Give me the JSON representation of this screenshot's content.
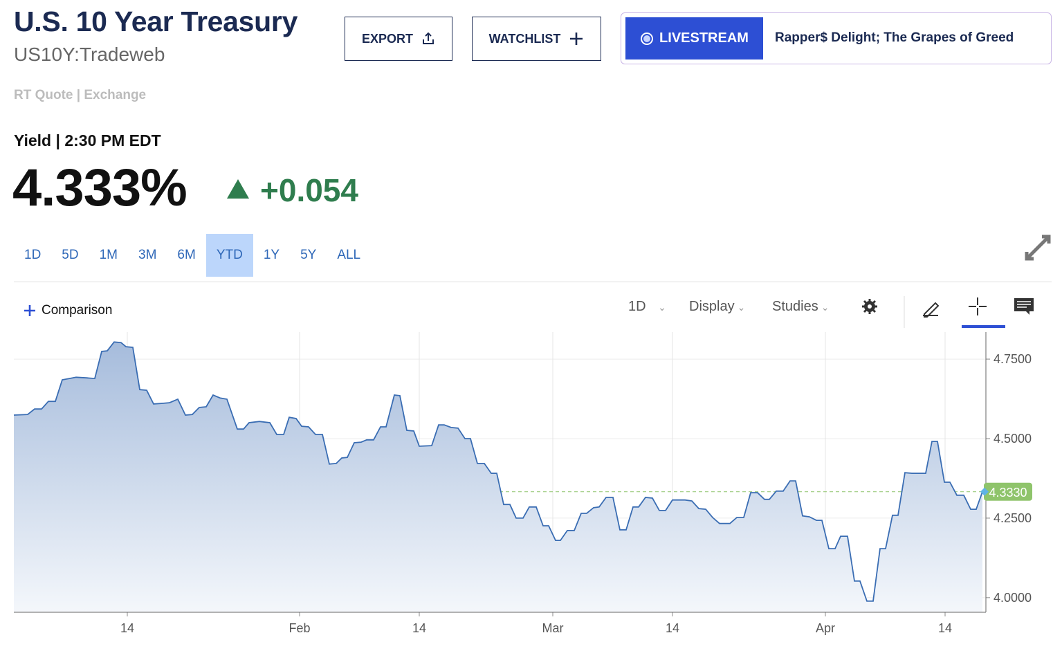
{
  "header": {
    "title": "U.S. 10 Year Treasury",
    "symbol": "US10Y:Tradeweb",
    "quote_source": "RT Quote | Exchange",
    "export": "EXPORT",
    "watchlist": "WATCHLIST",
    "livestream": "LIVESTREAM",
    "headline": "Rapper$ Delight; The Grapes of Greed"
  },
  "quote": {
    "label": "Yield | 2:30 PM EDT",
    "price": "4.333%",
    "change": "+0.054"
  },
  "ranges": [
    {
      "label": "1D"
    },
    {
      "label": "5D"
    },
    {
      "label": "1M"
    },
    {
      "label": "3M"
    },
    {
      "label": "6M"
    },
    {
      "label": "YTD",
      "selected": true
    },
    {
      "label": "1Y"
    },
    {
      "label": "5Y"
    },
    {
      "label": "ALL"
    }
  ],
  "toolbar": {
    "comparison": "Comparison",
    "interval": "1D",
    "display": "Display",
    "studies": "Studies"
  },
  "chart_data": {
    "type": "line",
    "color": "#3a6db3",
    "grid": true,
    "x": [
      0.0,
      2.0,
      3.0,
      4.0,
      5.0,
      6.0,
      7.0,
      8.5,
      9.0,
      10.5,
      11.7,
      12.7,
      13.5,
      14.5,
      15.5,
      16.2,
      17.2,
      18.2,
      19.2,
      20.2,
      21.5,
      22.5,
      23.7,
      24.8,
      25.8,
      26.8,
      27.8,
      28.8,
      29.8,
      30.8,
      32.3,
      33.2,
      34.0,
      35.5,
      37.0,
      38.0,
      39.0,
      39.8,
      40.8,
      41.6,
      42.6,
      43.6,
      44.6,
      45.6,
      46.6,
      47.4,
      48.2,
      49.2,
      50.2,
      51.0,
      52.0,
      53.0,
      53.8,
      55.0,
      55.8,
      56.8,
      57.8,
      58.6,
      60.4,
      61.4,
      62.2,
      63.2,
      64.2,
      65.2,
      66.0,
      67.0,
      68.0,
      69.0,
      69.8,
      70.8,
      71.7,
      72.6,
      73.6,
      74.5,
      75.5,
      76.5,
      77.3,
      78.3,
      79.0,
      80.0,
      81.0,
      82.0,
      82.8,
      83.8,
      84.6,
      85.6,
      86.6,
      87.6,
      88.5,
      89.5,
      90.3,
      91.3,
      92.3,
      93.3,
      94.2,
      95.2,
      97.0,
      98.0,
      99.0,
      100.0,
      101.0,
      102.0,
      103.5,
      104.5,
      105.5,
      106.5,
      107.5,
      108.5,
      109.2,
      110.2,
      111.2,
      112.2,
      113.0,
      114.0,
      115.0,
      116.0,
      116.8,
      117.8,
      118.7,
      119.5,
      120.5,
      121.5,
      122.3,
      123.3,
      124.2,
      125.2,
      126.0,
      127.0,
      127.8,
      128.8,
      129.8,
      130.8,
      131.8,
      132.7,
      133.5,
      134.5,
      135.3,
      136.3,
      137.3,
      138.3,
      139.1,
      140.0
    ],
    "values": [
      4.574,
      4.576,
      4.593,
      4.593,
      4.617,
      4.617,
      4.685,
      4.691,
      4.693,
      4.691,
      4.689,
      4.774,
      4.776,
      4.804,
      4.802,
      4.789,
      4.787,
      4.654,
      4.652,
      4.609,
      4.611,
      4.613,
      4.624,
      4.574,
      4.576,
      4.598,
      4.6,
      4.637,
      4.628,
      4.624,
      4.53,
      4.53,
      4.55,
      4.554,
      4.55,
      4.513,
      4.513,
      4.567,
      4.563,
      4.539,
      4.537,
      4.513,
      4.513,
      4.42,
      4.422,
      4.439,
      4.441,
      4.487,
      4.489,
      4.496,
      4.496,
      4.537,
      4.537,
      4.637,
      4.635,
      4.526,
      4.524,
      4.476,
      4.478,
      4.543,
      4.543,
      4.535,
      4.533,
      4.5,
      4.5,
      4.422,
      4.422,
      4.391,
      4.391,
      4.293,
      4.293,
      4.25,
      4.25,
      4.285,
      4.285,
      4.226,
      4.226,
      4.18,
      4.18,
      4.211,
      4.211,
      4.265,
      4.265,
      4.283,
      4.285,
      4.315,
      4.315,
      4.213,
      4.213,
      4.285,
      4.285,
      4.315,
      4.313,
      4.274,
      4.274,
      4.307,
      4.307,
      4.304,
      4.28,
      4.278,
      4.252,
      4.233,
      4.233,
      4.252,
      4.252,
      4.33,
      4.33,
      4.309,
      4.309,
      4.335,
      4.335,
      4.367,
      4.367,
      4.257,
      4.254,
      4.243,
      4.243,
      4.154,
      4.154,
      4.193,
      4.193,
      4.052,
      4.052,
      3.989,
      3.989,
      4.154,
      4.154,
      4.259,
      4.259,
      4.393,
      4.391,
      4.391,
      4.391,
      4.491,
      4.491,
      4.363,
      4.363,
      4.322,
      4.322,
      4.278,
      4.278,
      4.333
    ],
    "xlim": [
      0,
      140.5
    ],
    "ylim": [
      3.954,
      4.835
    ],
    "xticks": [
      {
        "value": 16.4,
        "label": "14"
      },
      {
        "value": 41.3,
        "label": "Feb"
      },
      {
        "value": 58.6,
        "label": "14"
      },
      {
        "value": 77.9,
        "label": "Mar"
      },
      {
        "value": 95.2,
        "label": "14"
      },
      {
        "value": 117.3,
        "label": "Apr"
      },
      {
        "value": 134.6,
        "label": "14"
      }
    ],
    "yticks": [
      {
        "value": 4.0,
        "label": "4.0000"
      },
      {
        "value": 4.25,
        "label": "4.2500"
      },
      {
        "value": 4.5,
        "label": "4.5000"
      },
      {
        "value": 4.75,
        "label": "4.7500"
      }
    ],
    "last_value": {
      "value": 4.333,
      "label": "4.3330"
    }
  }
}
